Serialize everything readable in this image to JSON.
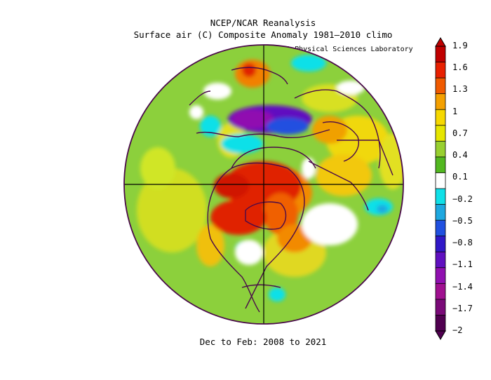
{
  "header": {
    "title_line1": "NCEP/NCAR Reanalysis",
    "title_line2": "Surface air (C) Composite Anomaly 1981–2010 climo",
    "credit": "NOAA Physical Sciences Laboratory"
  },
  "footer": {
    "date_range": "Dec to Feb: 2008 to 2021"
  },
  "colorbar": {
    "labels": [
      "1.9",
      "1.6",
      "1.3",
      "1",
      "0.7",
      "0.4",
      "0.1",
      "−0.2",
      "−0.5",
      "−0.8",
      "−1.1",
      "−1.4",
      "−1.7",
      "−2"
    ],
    "colors": [
      "#c00000",
      "#e82000",
      "#f05a00",
      "#f4a000",
      "#f6d800",
      "#e6e600",
      "#98d030",
      "#52b820",
      "#ffffff",
      "#10e0e8",
      "#1ea8e0",
      "#2050e0",
      "#3018c8",
      "#6010c0",
      "#9010b0",
      "#a01090",
      "#7a0a78",
      "#500050"
    ]
  },
  "map": {
    "projection": "north-polar-stereographic",
    "palette": {
      "ocean_background": "#8cd03c",
      "gridline": "#000000",
      "coastline": "#4a0a4a",
      "boundary": "#4a0a4a"
    }
  }
}
